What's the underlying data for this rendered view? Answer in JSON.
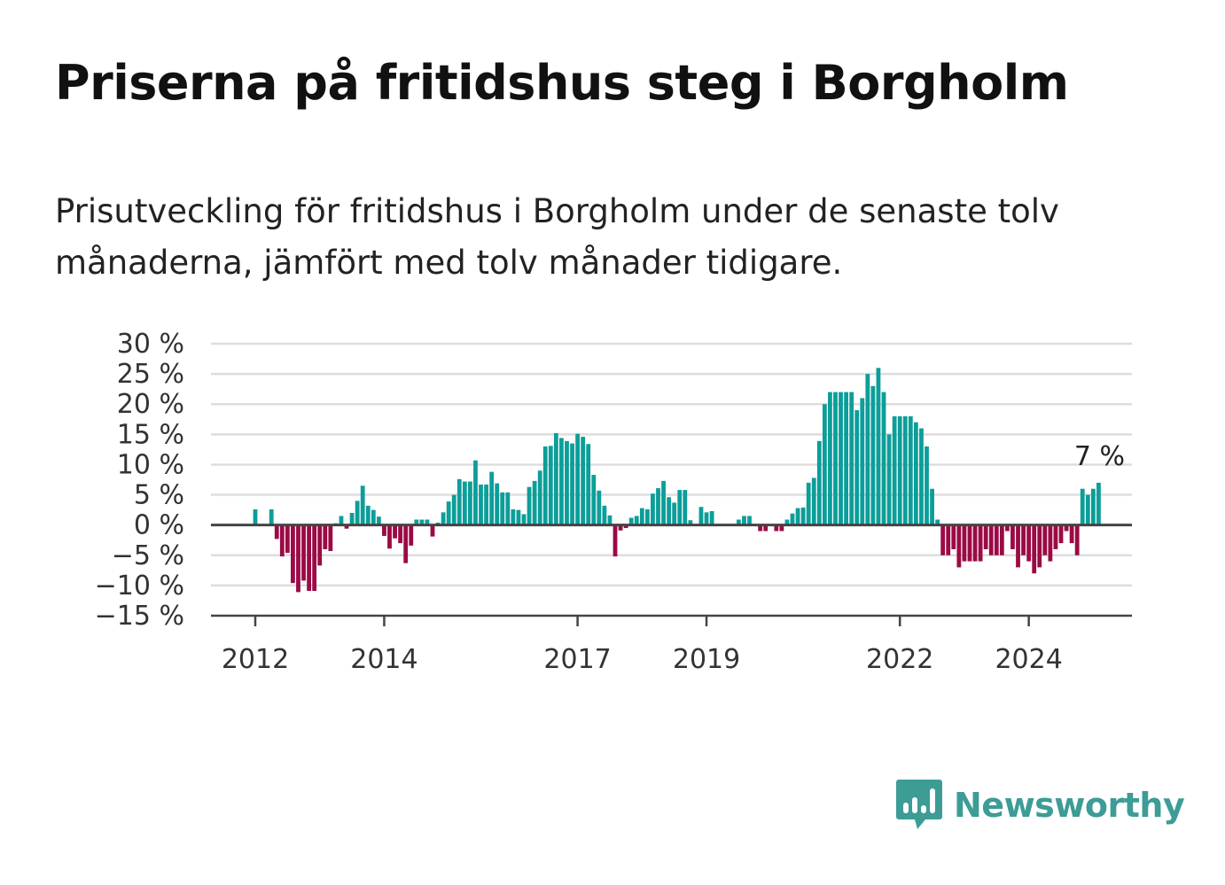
{
  "title": "Priserna på fritidshus steg i Borgholm",
  "subtitle": "Prisutveckling för fritidshus i Borgholm under de senaste tolv månaderna, jämfört med tolv månader tidigare.",
  "brand": {
    "name": "Newsworthy",
    "color": "#3d9c96",
    "icon": "bar-chart-speech-bubble-icon"
  },
  "colors": {
    "positive": "#0c9e99",
    "negative": "#9b0a45",
    "grid": "#dddddd",
    "zero_line": "#444444"
  },
  "chart_data": {
    "type": "bar",
    "title": "",
    "xlabel": "",
    "ylabel": "",
    "ylim": [
      -15,
      30
    ],
    "yticks": [
      -15,
      -10,
      -5,
      0,
      5,
      10,
      15,
      20,
      25,
      30
    ],
    "ytick_labels": [
      "−15 %",
      "−10 %",
      "−5 %",
      "0 %",
      "5 %",
      "10 %",
      "15 %",
      "20 %",
      "25 %",
      "30 %"
    ],
    "xticks": [
      {
        "label": "2012",
        "index": 0
      },
      {
        "label": "2014",
        "index": 24
      },
      {
        "label": "2017",
        "index": 60
      },
      {
        "label": "2019",
        "index": 84
      },
      {
        "label": "2022",
        "index": 120
      },
      {
        "label": "2024",
        "index": 144
      }
    ],
    "grid": true,
    "start_month": "2012-01",
    "frequency": "monthly",
    "values": [
      2.6,
      null,
      null,
      2.6,
      -2.3,
      -5.2,
      -4.6,
      -9.6,
      -11.1,
      -9.2,
      -10.9,
      -10.9,
      -6.7,
      -4.0,
      -4.3,
      0.3,
      1.5,
      -0.6,
      2.0,
      4.0,
      6.5,
      3.2,
      2.5,
      1.4,
      -1.8,
      -3.9,
      -2.2,
      -3.0,
      -6.3,
      -3.4,
      0.9,
      0.9,
      0.9,
      -1.9,
      0.4,
      2.1,
      3.9,
      5.0,
      7.6,
      7.2,
      7.2,
      10.7,
      6.7,
      6.7,
      8.8,
      6.9,
      5.4,
      5.4,
      2.6,
      2.5,
      1.8,
      6.3,
      7.3,
      9.0,
      13.0,
      13.1,
      15.2,
      14.4,
      13.9,
      13.5,
      15.1,
      14.6,
      13.4,
      8.3,
      5.7,
      3.2,
      1.6,
      -5.2,
      -0.9,
      -0.5,
      1.2,
      1.5,
      2.8,
      2.6,
      5.2,
      6.1,
      7.3,
      4.6,
      3.7,
      5.8,
      5.8,
      0.8,
      null,
      3.0,
      2.1,
      2.3,
      null,
      null,
      null,
      null,
      0.9,
      1.5,
      1.5,
      null,
      -1.0,
      -1.0,
      null,
      -1.0,
      -1.0,
      0.9,
      1.9,
      2.8,
      2.9,
      7.0,
      7.8,
      13.9,
      20.0,
      22.0,
      22.0,
      22.0,
      22.0,
      22.0,
      19.0,
      21.0,
      25.0,
      23.0,
      26.0,
      22.0,
      15.0,
      18.0,
      18.0,
      18.0,
      18.0,
      17.0,
      16.0,
      13.0,
      6.0,
      0.9,
      -5.0,
      -5.0,
      -4.0,
      -7.0,
      -6.0,
      -6.0,
      -6.0,
      -6.0,
      -4.0,
      -5.0,
      -5.0,
      -5.0,
      -1.0,
      -4.0,
      -7.0,
      -5.0,
      -6.0,
      -8.0,
      -7.0,
      -5.0,
      -6.0,
      -4.0,
      -3.0,
      -1.0,
      -3.0,
      -5.0,
      6.0,
      5.0,
      6.0,
      7.0
    ],
    "annotation": {
      "label": "7 %",
      "index": 157
    }
  }
}
